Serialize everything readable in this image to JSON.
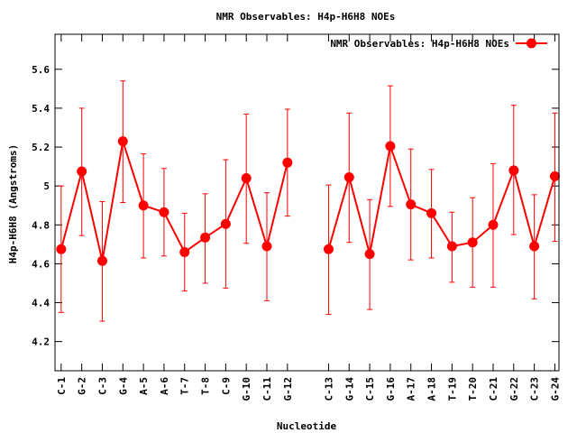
{
  "chart_data": {
    "type": "line",
    "title": "NMR Observables: H4p-H6H8 NOEs",
    "xlabel": "Nucleotide",
    "ylabel": "H4p-H6H8 (Angstroms)",
    "ylim": [
      4.05,
      5.78
    ],
    "yticks": [
      4.2,
      4.4,
      4.6,
      4.8,
      5,
      5.2,
      5.4,
      5.6
    ],
    "ytick_labels": [
      "4.2",
      "4.4",
      "4.6",
      "4.8",
      "5",
      "5.2",
      "5.4",
      "5.6"
    ],
    "xlim": [
      0.7,
      25.2
    ],
    "legend": {
      "position": "top-right",
      "label": "NMR Observables: H4p-H6H8 NOEs"
    },
    "color": "#ff0000",
    "categories": [
      "C-1",
      "G-2",
      "C-3",
      "G-4",
      "A-5",
      "A-6",
      "T-7",
      "T-8",
      "C-9",
      "G-10",
      "C-11",
      "G-12",
      "C-13",
      "G-14",
      "C-15",
      "G-16",
      "A-17",
      "A-18",
      "T-19",
      "T-20",
      "C-21",
      "G-22",
      "C-23",
      "G-24"
    ],
    "x": [
      1,
      2,
      3,
      4,
      5,
      6,
      7,
      8,
      9,
      10,
      11,
      12,
      14,
      15,
      16,
      17,
      18,
      19,
      20,
      21,
      22,
      23,
      24,
      25
    ],
    "values": [
      4.675,
      5.075,
      4.615,
      5.23,
      4.9,
      4.865,
      4.66,
      4.735,
      4.805,
      5.04,
      4.69,
      5.12,
      4.675,
      5.045,
      4.65,
      5.205,
      4.905,
      4.86,
      4.69,
      4.71,
      4.8,
      5.08,
      4.69,
      5.05
    ],
    "err_low": [
      4.35,
      4.745,
      4.305,
      4.915,
      4.63,
      4.64,
      4.46,
      4.5,
      4.475,
      4.705,
      4.41,
      4.845,
      4.34,
      4.71,
      4.365,
      4.895,
      4.62,
      4.63,
      4.505,
      4.48,
      4.48,
      4.75,
      4.42,
      4.715
    ],
    "err_high": [
      5.0,
      5.4,
      4.92,
      5.54,
      5.165,
      5.09,
      4.86,
      4.96,
      5.135,
      5.37,
      4.965,
      5.395,
      5.005,
      5.375,
      4.93,
      5.515,
      5.19,
      5.085,
      4.865,
      4.94,
      5.115,
      5.415,
      4.955,
      5.375
    ],
    "segments": [
      [
        0,
        12
      ],
      [
        12,
        24
      ]
    ]
  }
}
